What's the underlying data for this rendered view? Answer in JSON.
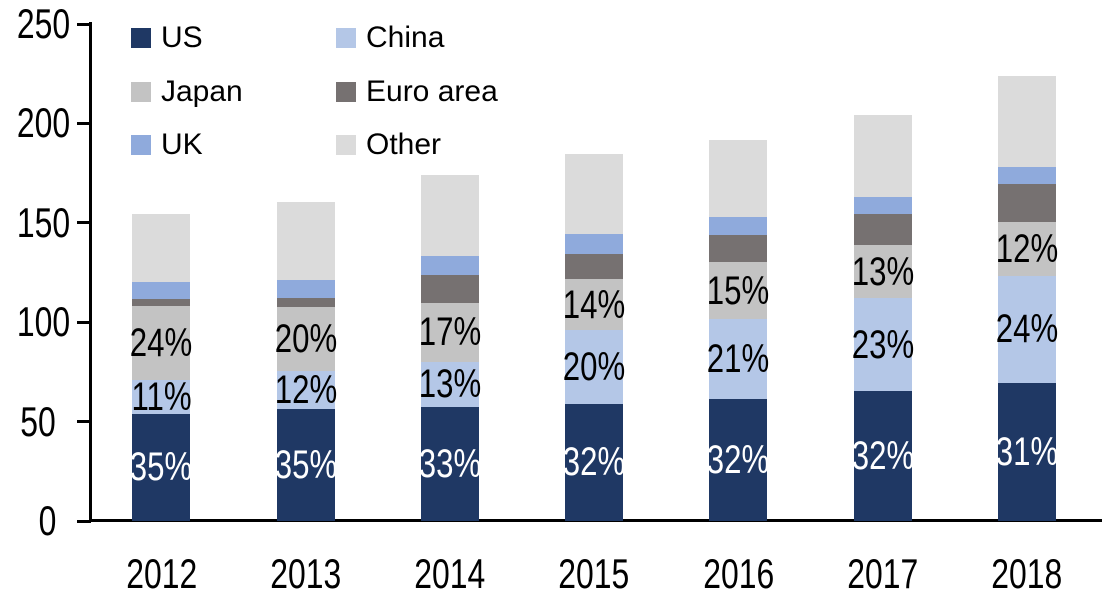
{
  "chart_data": {
    "type": "bar",
    "stacked": true,
    "title": "",
    "categories": [
      "2012",
      "2013",
      "2014",
      "2015",
      "2016",
      "2017",
      "2018"
    ],
    "series": [
      {
        "name": "US",
        "color": "#1F3864",
        "values": [
          54.0,
          56.2,
          57.5,
          59.0,
          61.3,
          65.3,
          69.5
        ],
        "labels": [
          "35%",
          "35%",
          "33%",
          "32%",
          "32%",
          "32%",
          "31%"
        ],
        "label_color": "#FFFFFF"
      },
      {
        "name": "China",
        "color": "#B4C7E7",
        "values": [
          16.9,
          19.3,
          22.6,
          36.9,
          40.2,
          46.9,
          53.8
        ],
        "labels": [
          "11%",
          "12%",
          "13%",
          "20%",
          "21%",
          "23%",
          "24%"
        ],
        "label_color": "#000000"
      },
      {
        "name": "Japan",
        "color": "#C3C3C3",
        "values": [
          37.0,
          32.1,
          29.6,
          25.8,
          28.7,
          26.5,
          26.9
        ],
        "labels": [
          "24%",
          "20%",
          "17%",
          "14%",
          "15%",
          "13%",
          "12%"
        ],
        "label_color": "#000000"
      },
      {
        "name": "Euro area",
        "color": "#767171",
        "values": [
          3.9,
          4.7,
          14.2,
          12.8,
          13.9,
          15.5,
          19.3
        ],
        "labels": [
          "",
          "",
          "",
          "",
          "",
          "",
          ""
        ],
        "label_color": "#000000"
      },
      {
        "name": "UK",
        "color": "#8FAADC",
        "values": [
          8.4,
          8.9,
          9.2,
          9.8,
          8.7,
          8.8,
          8.4
        ],
        "labels": [
          "",
          "",
          "",
          "",
          "",
          "",
          ""
        ],
        "label_color": "#000000"
      },
      {
        "name": "Other",
        "color": "#DBDBDB",
        "values": [
          34.1,
          39.3,
          41.0,
          40.2,
          38.7,
          41.0,
          46.1
        ],
        "labels": [
          "",
          "",
          "",
          "",
          "",
          "",
          ""
        ],
        "label_color": "#000000"
      }
    ],
    "totals": [
      154.3,
      160.5,
      174.1,
      184.5,
      191.5,
      204.0,
      224.0
    ],
    "ylim": [
      0,
      250
    ],
    "y_ticks": [
      0,
      50,
      100,
      150,
      200,
      250
    ],
    "grid": false,
    "legend_position": "top-left",
    "legend_columns": 2,
    "axis_color": "#000000",
    "background_color": "#FFFFFF"
  }
}
